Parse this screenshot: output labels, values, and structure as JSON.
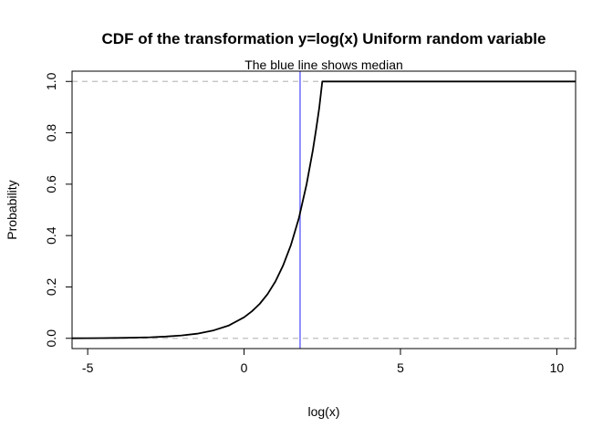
{
  "chart_data": {
    "type": "line",
    "title": "CDF of the transformation y=log(x) Uniform random variable",
    "subtitle": "The blue line shows median",
    "xlabel": "log(x)",
    "ylabel": "Probability",
    "xlim": [
      -5.5,
      10.6
    ],
    "ylim": [
      -0.04,
      1.04
    ],
    "x_ticks": [
      -5,
      0,
      5,
      10
    ],
    "x_tick_labels": [
      "-5",
      "0",
      "5",
      "10"
    ],
    "y_ticks": [
      0.0,
      0.2,
      0.4,
      0.6,
      0.8,
      1.0
    ],
    "y_tick_labels": [
      "0.0",
      "0.2",
      "0.4",
      "0.6",
      "0.8",
      "1.0"
    ],
    "reference_lines": [
      {
        "axis": "y",
        "value": 0,
        "style": "dashed",
        "color": "#bfbfbf"
      },
      {
        "axis": "y",
        "value": 1,
        "style": "dashed",
        "color": "#bfbfbf"
      }
    ],
    "median_line": {
      "axis": "x",
      "value": 1.79,
      "color": "#6b6bff"
    },
    "series": [
      {
        "color": "#000000",
        "x": [
          -5.5,
          -5,
          -4.5,
          -4,
          -3.5,
          -3,
          -2.5,
          -2,
          -1.5,
          -1,
          -0.5,
          0,
          0.25,
          0.5,
          0.75,
          1.0,
          1.25,
          1.5,
          1.75,
          2.0,
          2.2,
          2.3,
          2.4,
          2.5,
          10.6
        ],
        "y": [
          0.0003,
          0.0005,
          0.0009,
          0.0015,
          0.0025,
          0.0041,
          0.0068,
          0.011,
          0.018,
          0.03,
          0.049,
          0.082,
          0.105,
          0.134,
          0.172,
          0.221,
          0.284,
          0.364,
          0.467,
          0.6,
          0.733,
          0.81,
          0.895,
          1.0,
          1.0
        ]
      }
    ],
    "grid": false,
    "colors": {
      "curve": "#000000",
      "median": "#6b6bff",
      "reference": "#bfbfbf"
    }
  }
}
